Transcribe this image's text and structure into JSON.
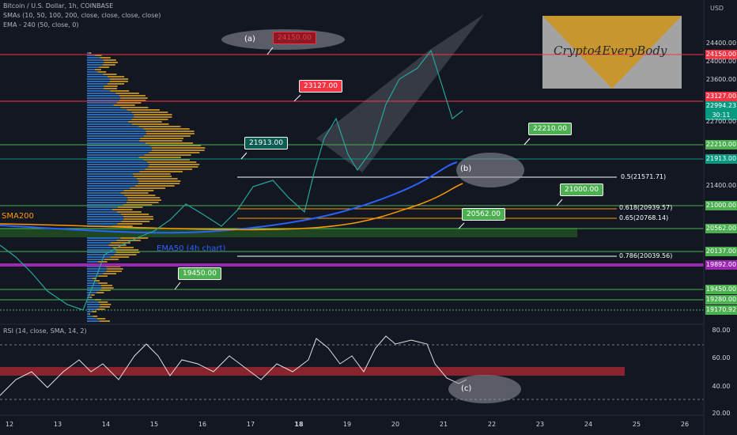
{
  "header": {
    "symbol": "Bitcoin / U.S. Dollar, 1h, COINBASE",
    "smas": "SMAs (10, 50, 100, 200, close, close, close, close)",
    "ema": "EMA - 240 (50, close, 0)",
    "currency": "USD"
  },
  "logo": "Crypto4EveryBody",
  "price_axis": [
    "24400.00",
    "24150.00",
    "24000.00",
    "23600.00",
    "23127.00",
    "22994.23",
    "30:11",
    "22700.00",
    "22210.00",
    "21913.00",
    "21400.00",
    "21000.00",
    "20562.00",
    "20137.00",
    "19892.00",
    "19450.00",
    "19280.00",
    "19170.92"
  ],
  "callouts": [
    "24150.00",
    "23127.00",
    "21913.00",
    "22210.00",
    "21000.00",
    "20562.00",
    "19450.00"
  ],
  "markers": [
    "(a)",
    "(b)",
    "(c)"
  ],
  "fib_levels": [
    "0.5(21571.71)",
    "0.618(20939.57)",
    "0.65(20768.14)",
    "0.786(20039.56)"
  ],
  "line_labels": [
    "SMA200",
    "EMA50 (4h chart)"
  ],
  "rsi": {
    "title": "RSI (14, close, SMA, 14, 2)",
    "axis": [
      "80.00",
      "60.00",
      "40.00",
      "20.00"
    ]
  },
  "time_axis": [
    "12",
    "13",
    "14",
    "15",
    "16",
    "17",
    "18",
    "19",
    "20",
    "21",
    "22",
    "23",
    "24",
    "25",
    "26"
  ]
}
